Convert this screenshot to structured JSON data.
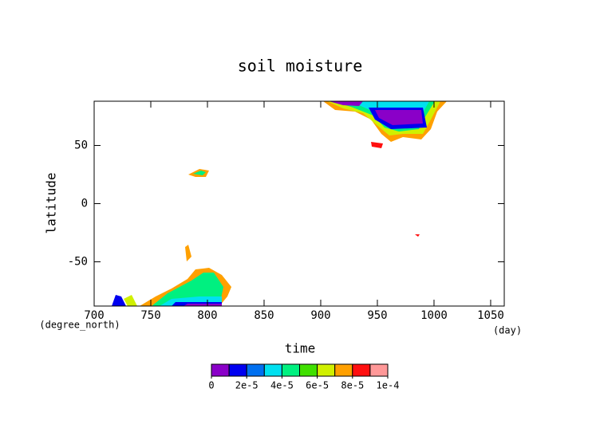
{
  "chart_data": {
    "type": "contour",
    "title": "soil moisture",
    "x_label": "time",
    "y_label": "latitude",
    "x_units": "(day)",
    "y_units": "(degree_north)",
    "xlim": [
      700,
      1062
    ],
    "ylim": [
      -88,
      88
    ],
    "xticks": [
      700,
      750,
      800,
      850,
      900,
      950,
      1000,
      1050
    ],
    "yticks": [
      -50,
      0,
      50
    ],
    "colorbar": {
      "levels": [
        0,
        1e-05,
        2e-05,
        3e-05,
        4e-05,
        5e-05,
        6e-05,
        7e-05,
        8e-05,
        9e-05,
        0.0001
      ],
      "colors": [
        "#8a00c8",
        "#0000f0",
        "#0070f0",
        "#00e0f0",
        "#00f080",
        "#40e000",
        "#d0f000",
        "#ffa000",
        "#ff1010",
        "#ff9898"
      ],
      "ticks": [
        {
          "value": 0,
          "label": "0"
        },
        {
          "value": 2e-05,
          "label": "2e-5"
        },
        {
          "value": 4e-05,
          "label": "4e-5"
        },
        {
          "value": 6e-05,
          "label": "6e-5"
        },
        {
          "value": 8e-05,
          "label": "8e-5"
        },
        {
          "value": 0.0001,
          "label": "1e-4"
        }
      ]
    }
  }
}
